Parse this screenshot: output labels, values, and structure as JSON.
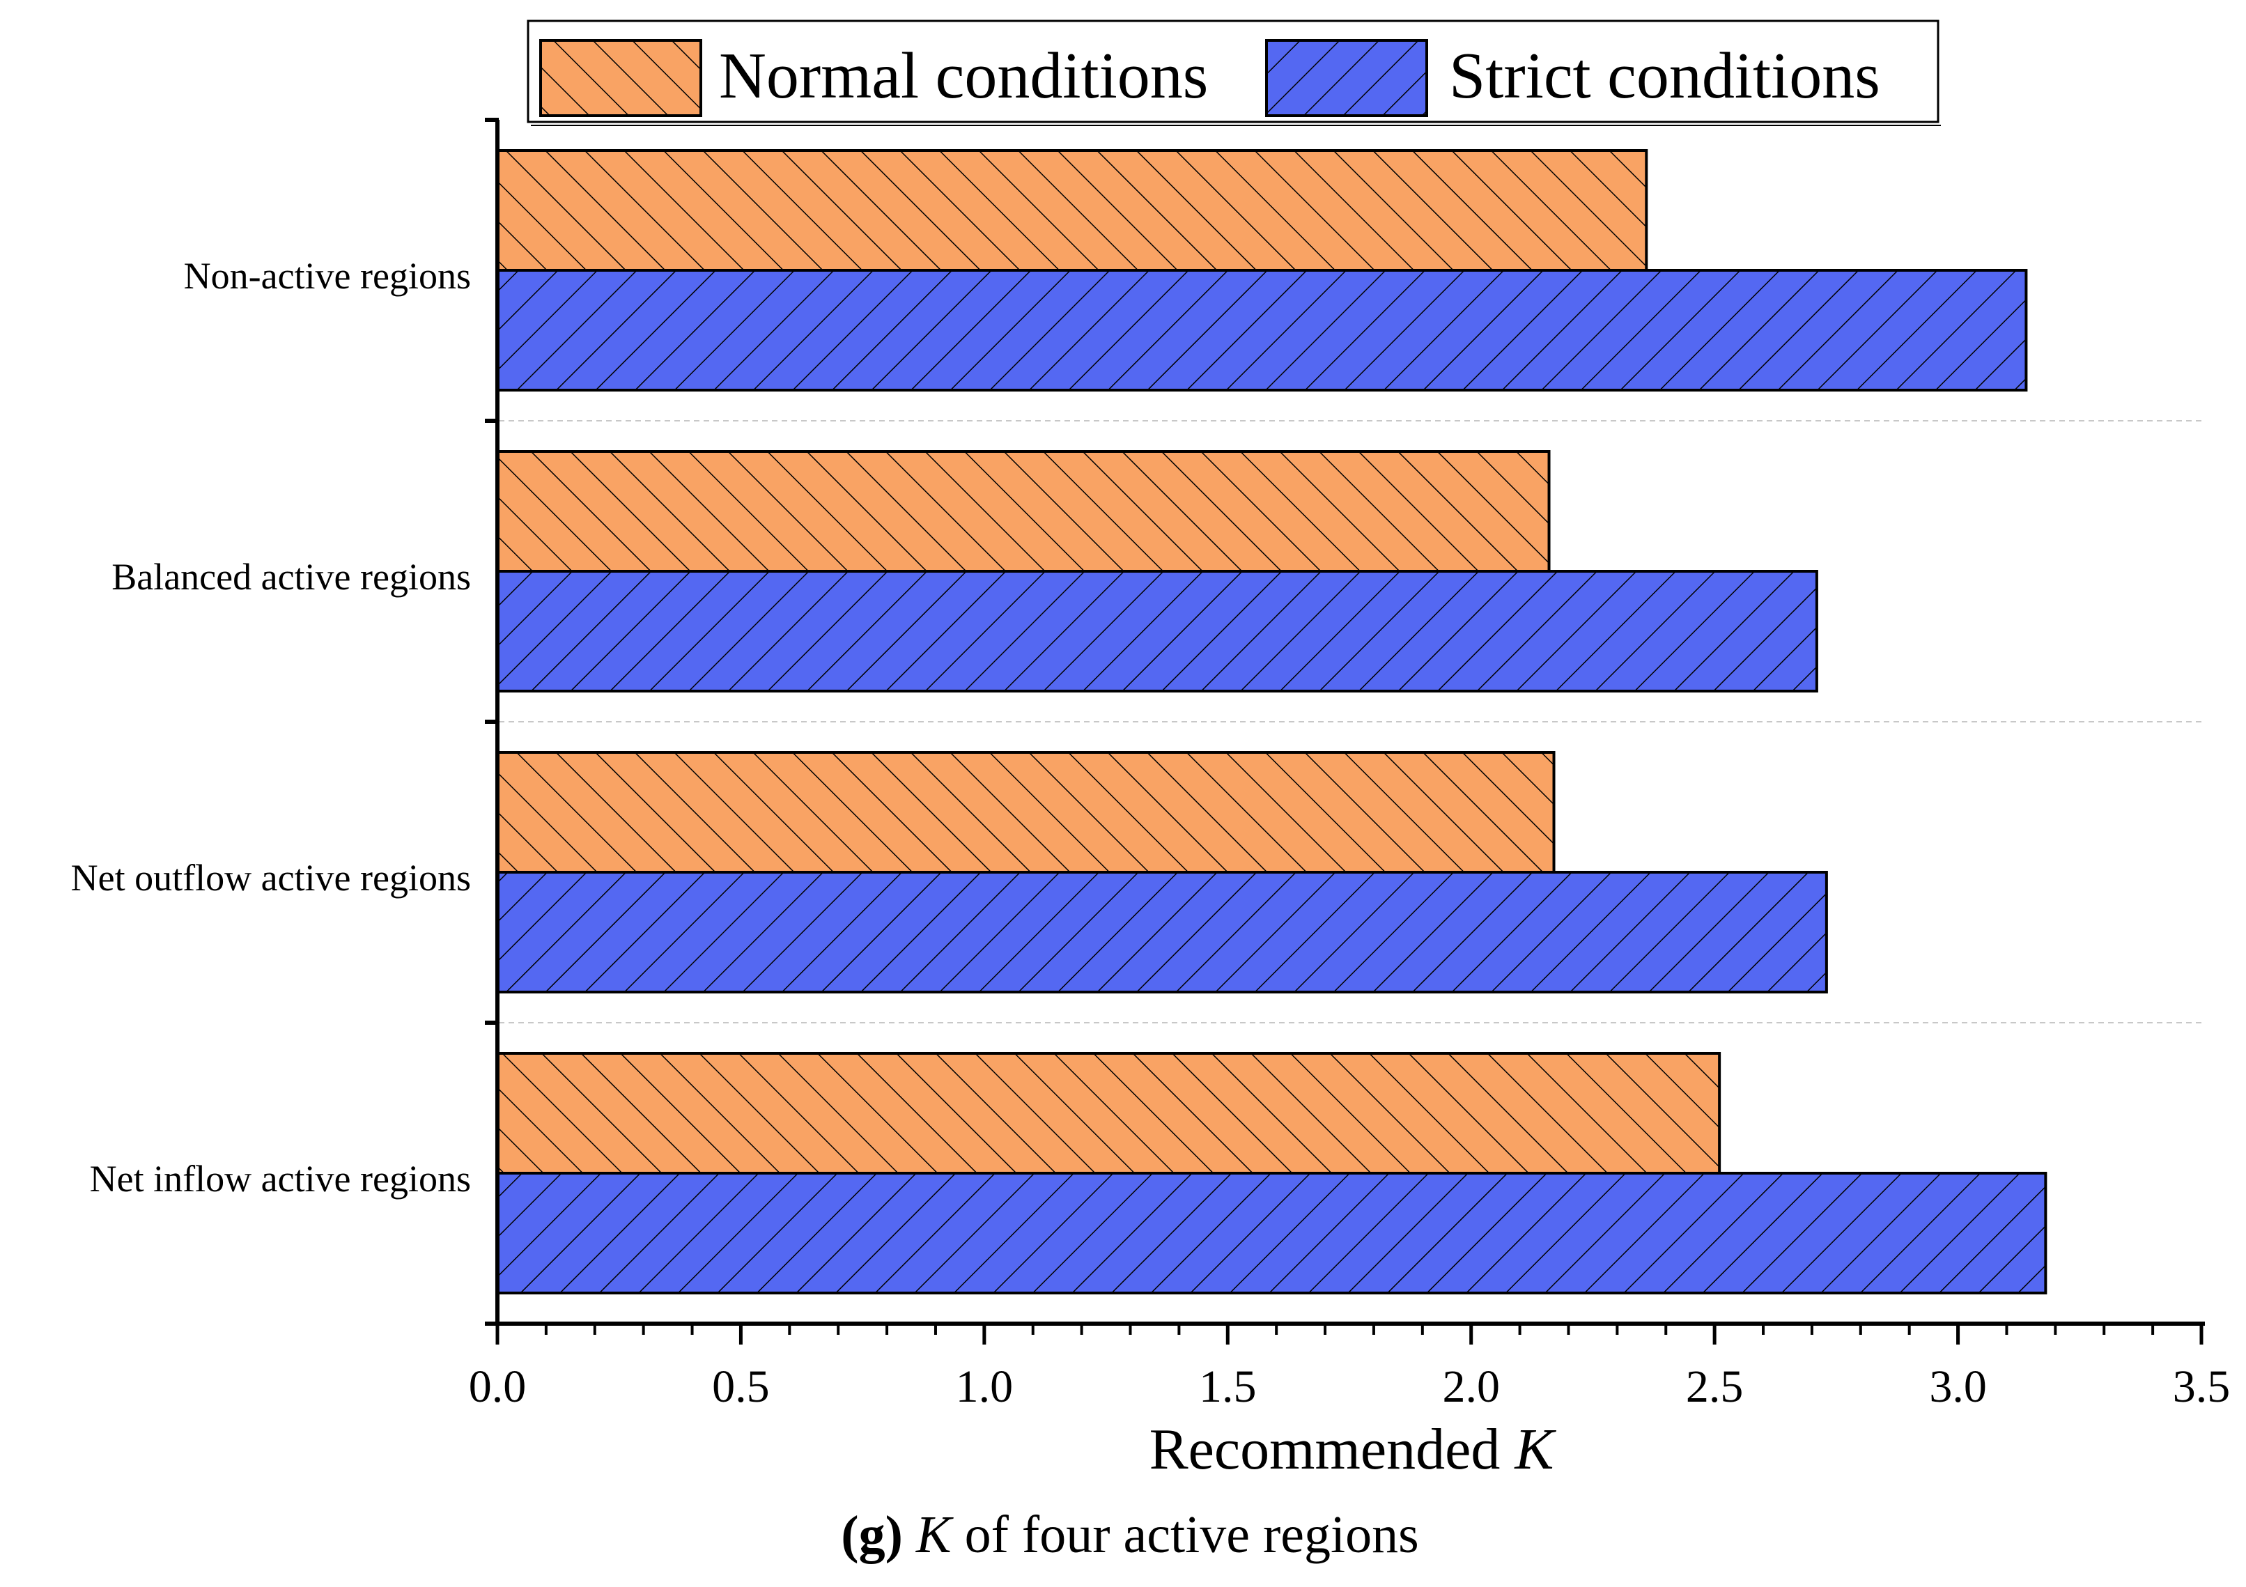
{
  "chart_data": {
    "type": "bar",
    "orientation": "horizontal",
    "categories": [
      "Non-active regions",
      "Balanced active regions",
      "Net outflow active regions",
      "Net inflow active regions"
    ],
    "series": [
      {
        "name": "Normal conditions",
        "values": [
          2.36,
          2.16,
          2.17,
          2.51
        ],
        "color": "#F9A364",
        "hatch": "backslash"
      },
      {
        "name": "Strict conditions",
        "values": [
          3.14,
          2.71,
          2.73,
          3.18
        ],
        "color": "#5468F2",
        "hatch": "slash"
      }
    ],
    "xlabel_prefix": "Recommended ",
    "xlabel_var": "K",
    "xlim": [
      0,
      3.5
    ],
    "xticks": [
      "0.0",
      "0.5",
      "1.0",
      "1.5",
      "2.0",
      "2.5",
      "3.0",
      "3.5"
    ],
    "xtick_values": [
      0,
      0.5,
      1.0,
      1.5,
      2.0,
      2.5,
      3.0,
      3.5
    ],
    "minor_step": 0.1,
    "legend_position": "top",
    "grid": "dashed separators between categories"
  },
  "caption": {
    "label": "(g)",
    "var": "K",
    "text": " of four active regions"
  }
}
